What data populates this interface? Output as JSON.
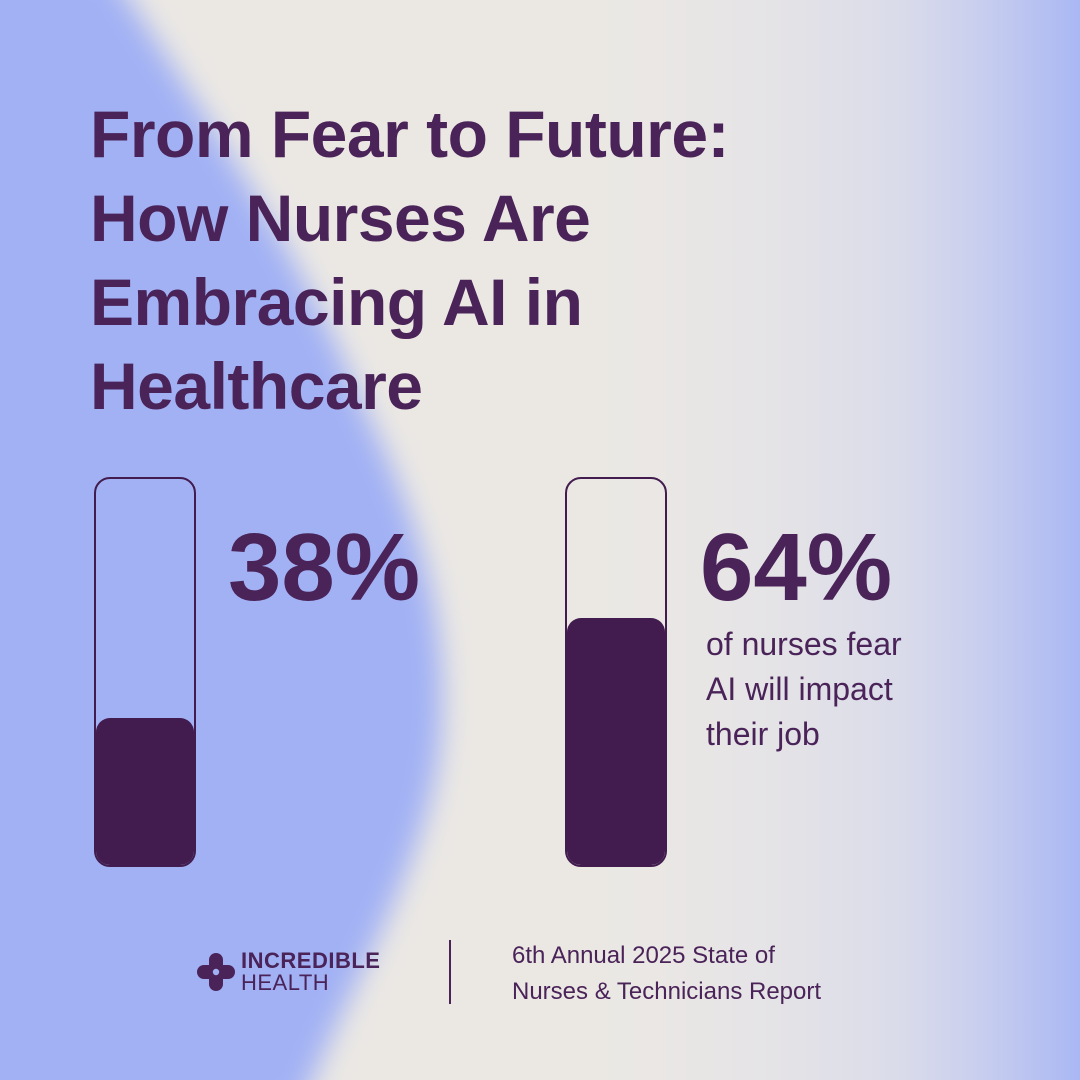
{
  "title": {
    "lines": [
      "From Fear to Future:",
      "How Nurses Are",
      "Embracing AI in",
      "Healthcare"
    ]
  },
  "colors": {
    "text": "#4a2358",
    "fill": "#421c4e",
    "periwinkle": "#a1b1f4",
    "cream": "#ebe8e4"
  },
  "chart_data": {
    "type": "bar",
    "categories": [
      "38%",
      "64%"
    ],
    "values": [
      38,
      64
    ],
    "ylim": [
      0,
      100
    ],
    "annotations": [
      "of nurses fear AI will impact their job"
    ]
  },
  "stats": [
    {
      "value_label": "38%",
      "fill_percent": 38
    },
    {
      "value_label": "64%",
      "fill_percent": 64,
      "caption_lines": [
        "of nurses fear",
        "AI will impact",
        "their job"
      ]
    }
  ],
  "footer": {
    "logo": {
      "icon": "medical-cross-icon",
      "line1": "INCREDIBLE",
      "line2": "HEALTH"
    },
    "report_lines": [
      "6th Annual 2025 State of",
      "Nurses & Technicians Report"
    ]
  }
}
